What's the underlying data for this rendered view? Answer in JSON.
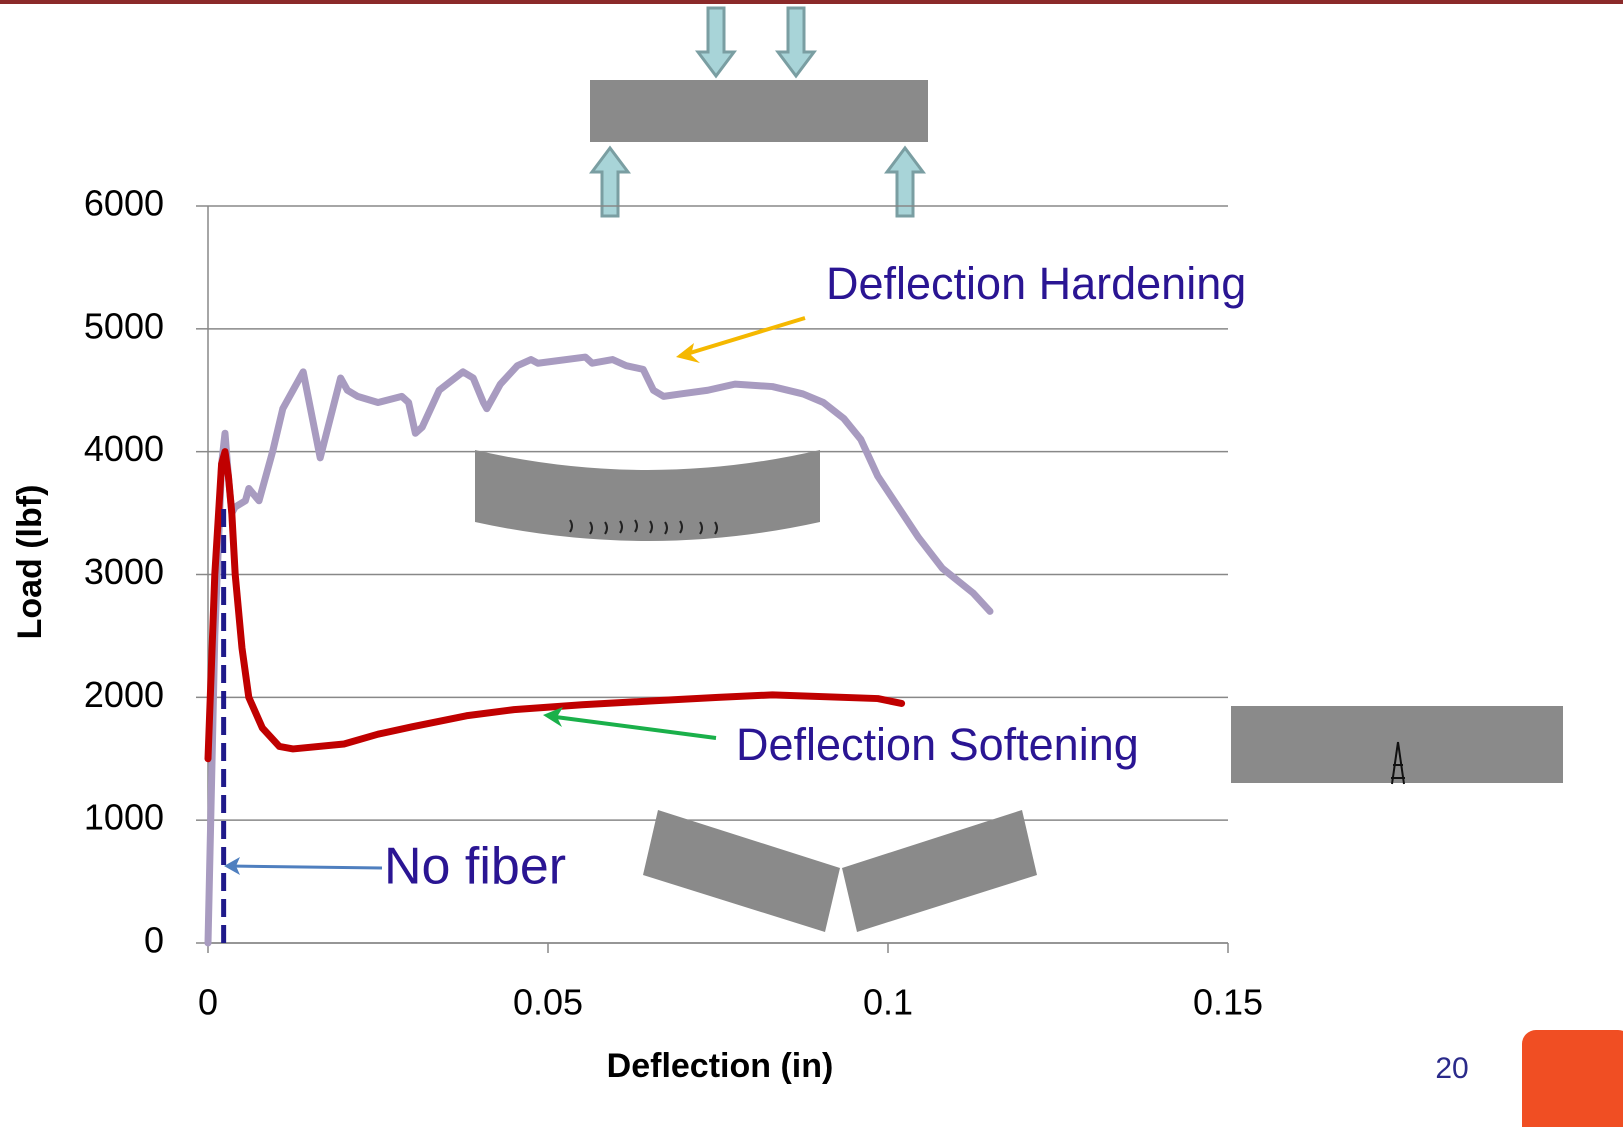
{
  "chart_data": {
    "type": "line",
    "xlabel": "Deflection (in)",
    "ylabel": "Load (lbf)",
    "xlim": [
      0,
      0.15
    ],
    "xticks": [
      0,
      0.05,
      0.1,
      0.15
    ],
    "ylim": [
      0,
      6000
    ],
    "yticks": [
      0,
      1000,
      2000,
      3000,
      4000,
      5000,
      6000
    ],
    "grid": true,
    "series": [
      {
        "name": "Deflection Hardening",
        "color": "#a89bc0",
        "dash": false,
        "x": [
          0,
          0.001,
          0.002,
          0.0025,
          0.003,
          0.0035,
          0.004,
          0.0055,
          0.006,
          0.0075,
          0.0095,
          0.011,
          0.0125,
          0.014,
          0.0165,
          0.0195,
          0.0205,
          0.022,
          0.025,
          0.0285,
          0.0295,
          0.0305,
          0.0315,
          0.034,
          0.0375,
          0.039,
          0.0405,
          0.041,
          0.043,
          0.0455,
          0.0475,
          0.0485,
          0.0555,
          0.0565,
          0.0595,
          0.0615,
          0.064,
          0.0655,
          0.067,
          0.0695,
          0.0735,
          0.0775,
          0.083,
          0.0875,
          0.0905,
          0.0935,
          0.096,
          0.0985,
          0.1015,
          0.1045,
          0.108,
          0.1125,
          0.115
        ],
        "values": [
          0,
          2500,
          3900,
          4150,
          3800,
          3500,
          3550,
          3600,
          3700,
          3600,
          4000,
          4350,
          4500,
          4650,
          3950,
          4600,
          4500,
          4450,
          4400,
          4450,
          4400,
          4150,
          4200,
          4500,
          4650,
          4600,
          4400,
          4350,
          4550,
          4700,
          4750,
          4720,
          4770,
          4720,
          4750,
          4700,
          4670,
          4500,
          4450,
          4470,
          4500,
          4550,
          4530,
          4470,
          4400,
          4270,
          4100,
          3800,
          3550,
          3300,
          3050,
          2850,
          2700
        ]
      },
      {
        "name": "Deflection Softening",
        "color": "#c00000",
        "dash": false,
        "x": [
          0,
          0.001,
          0.002,
          0.0025,
          0.003,
          0.0035,
          0.004,
          0.005,
          0.006,
          0.008,
          0.0105,
          0.0125,
          0.02,
          0.025,
          0.03,
          0.038,
          0.045,
          0.055,
          0.065,
          0.075,
          0.083,
          0.0985,
          0.102
        ],
        "values": [
          1500,
          3000,
          3900,
          4000,
          3800,
          3500,
          3000,
          2400,
          2000,
          1750,
          1600,
          1580,
          1620,
          1700,
          1760,
          1850,
          1900,
          1940,
          1970,
          2000,
          2020,
          1990,
          1950
        ]
      },
      {
        "name": "No fiber",
        "color": "#1f1a8a",
        "dash": true,
        "x": [
          0.0023,
          0.0023
        ],
        "values": [
          0,
          3550
        ]
      }
    ]
  },
  "slide_number": "20"
}
